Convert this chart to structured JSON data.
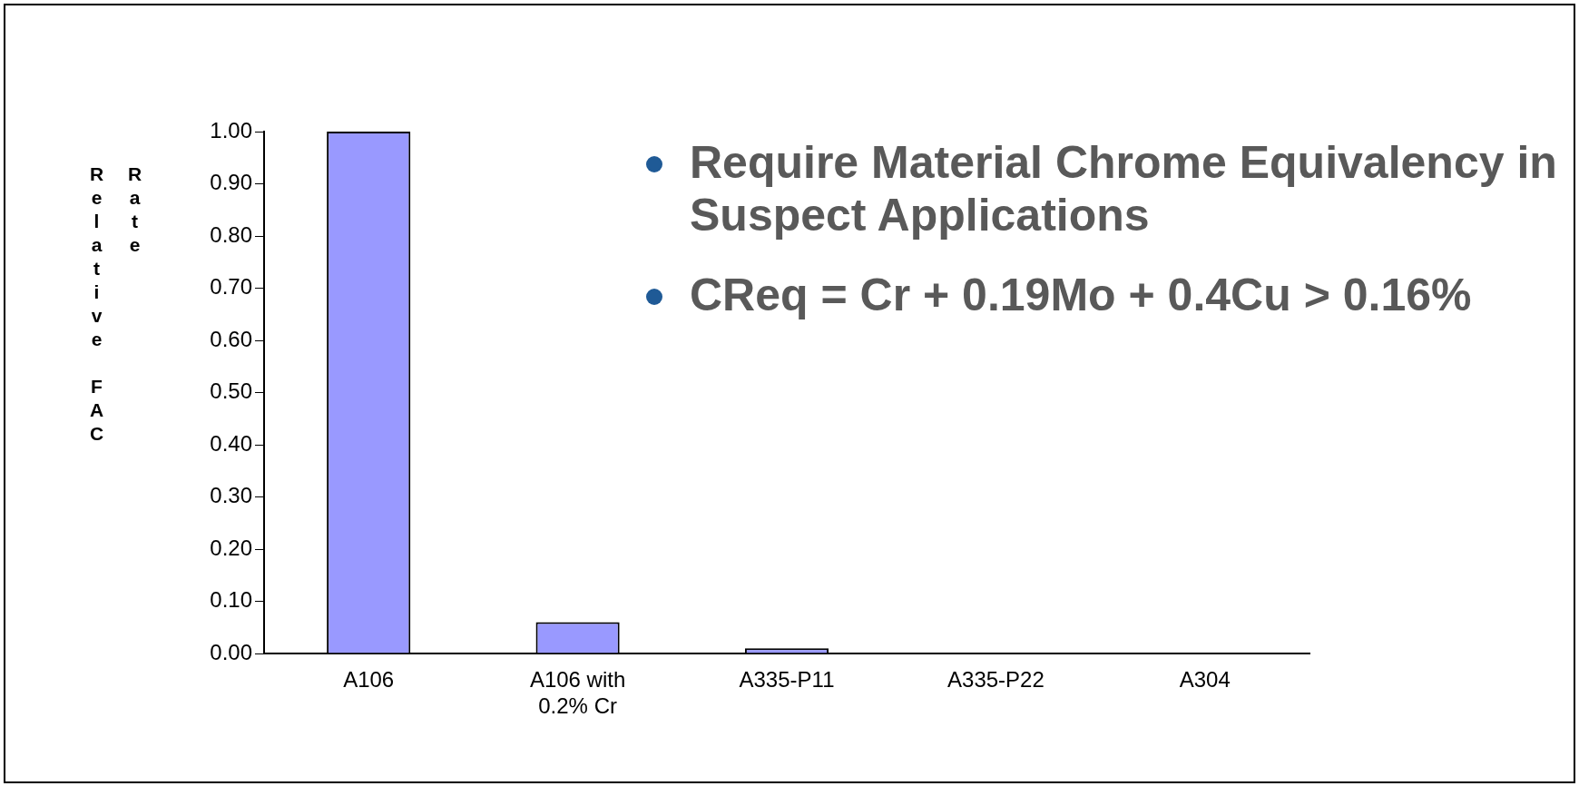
{
  "chart_data": {
    "type": "bar",
    "ylabel": "Relative FAC Rate",
    "categories": [
      "A106",
      "A106 with 0.2% Cr",
      "A335-P11",
      "A335-P22",
      "A304"
    ],
    "values": [
      1.0,
      0.06,
      0.01,
      0,
      0
    ],
    "color": "#9999ff",
    "ylim": [
      0,
      1
    ],
    "yticks": [
      {
        "value": 0,
        "label": "0.00"
      },
      {
        "value": 0.1,
        "label": "0.10"
      },
      {
        "value": 0.2,
        "label": "0.20"
      },
      {
        "value": 0.3,
        "label": "0.30"
      },
      {
        "value": 0.4,
        "label": "0.40"
      },
      {
        "value": 0.5,
        "label": "0.50"
      },
      {
        "value": 0.6,
        "label": "0.60"
      },
      {
        "value": 0.7,
        "label": "0.70"
      },
      {
        "value": 0.8,
        "label": "0.80"
      },
      {
        "value": 0.9,
        "label": "0.90"
      },
      {
        "value": 1,
        "label": "1.00"
      }
    ],
    "grid": false,
    "legend": false,
    "annotations": [
      "Require Material Chrome Equivalency in Suspect Applications",
      "CReq = Cr + 0.19Mo + 0.4Cu > 0.16%"
    ]
  }
}
